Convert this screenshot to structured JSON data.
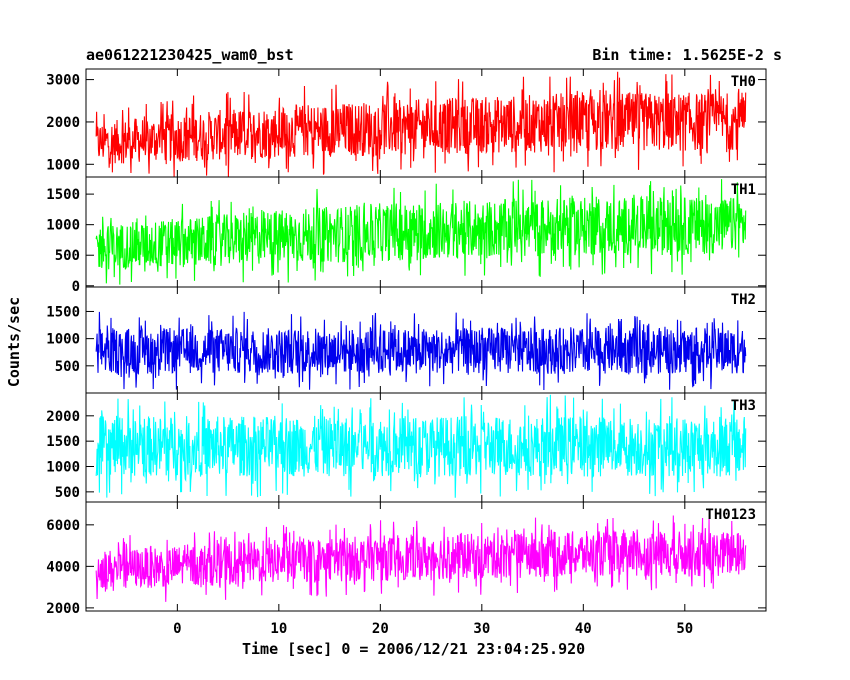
{
  "header": {
    "left_title": "ae061221230425_wam0_bst",
    "right_title": "Bin time: 1.5625E-2 s"
  },
  "chart_data": {
    "type": "line",
    "xlabel": "Time [sec] 0 = 2006/12/21 23:04:25.920",
    "ylabel": "Counts/sec",
    "xlim": [
      -9,
      58
    ],
    "x_ticks": [
      0,
      10,
      20,
      30,
      40,
      50
    ],
    "data_x_range": [
      -8,
      56
    ],
    "panels": [
      {
        "name": "TH0",
        "color": "#ff0000",
        "ylim": [
          700,
          3250
        ],
        "y_ticks": [
          1000,
          2000,
          3000
        ],
        "envelope": {
          "x": [
            -8,
            0,
            10,
            20,
            30,
            40,
            50,
            56
          ],
          "lower": [
            1000,
            1050,
            1150,
            1200,
            1250,
            1300,
            1300,
            1350
          ],
          "upper": [
            2000,
            2200,
            2400,
            2500,
            2600,
            2700,
            2700,
            2700
          ]
        }
      },
      {
        "name": "TH1",
        "color": "#00ff00",
        "ylim": [
          -20,
          1780
        ],
        "y_ticks": [
          0,
          500,
          1000,
          1500
        ],
        "envelope": {
          "x": [
            -8,
            0,
            10,
            20,
            30,
            40,
            50,
            56
          ],
          "lower": [
            250,
            300,
            350,
            400,
            450,
            500,
            500,
            550
          ],
          "upper": [
            1000,
            1100,
            1250,
            1350,
            1400,
            1450,
            1450,
            1450
          ]
        }
      },
      {
        "name": "TH2",
        "color": "#0000ee",
        "ylim": [
          0,
          1950
        ],
        "y_ticks": [
          500,
          1000,
          1500
        ],
        "envelope": {
          "x": [
            -8,
            0,
            10,
            20,
            30,
            40,
            50,
            56
          ],
          "lower": [
            350,
            350,
            350,
            350,
            350,
            350,
            350,
            350
          ],
          "upper": [
            1200,
            1200,
            1200,
            1200,
            1200,
            1200,
            1200,
            1200
          ]
        }
      },
      {
        "name": "TH3",
        "color": "#00ffff",
        "ylim": [
          300,
          2450
        ],
        "y_ticks": [
          500,
          1000,
          1500,
          2000
        ],
        "envelope": {
          "x": [
            -8,
            0,
            10,
            20,
            30,
            40,
            50,
            56
          ],
          "lower": [
            800,
            800,
            800,
            800,
            800,
            800,
            800,
            800
          ],
          "upper": [
            2000,
            2000,
            2000,
            2000,
            2000,
            2000,
            2000,
            2000
          ]
        }
      },
      {
        "name": "TH0123",
        "color": "#ff00ff",
        "ylim": [
          1850,
          7100
        ],
        "y_ticks": [
          2000,
          4000,
          6000
        ],
        "envelope": {
          "x": [
            -8,
            0,
            10,
            20,
            30,
            40,
            50,
            56
          ],
          "lower": [
            2900,
            3000,
            3200,
            3300,
            3400,
            3500,
            3500,
            3500
          ],
          "upper": [
            4800,
            5000,
            5300,
            5500,
            5600,
            5700,
            5700,
            5700
          ]
        }
      }
    ]
  }
}
